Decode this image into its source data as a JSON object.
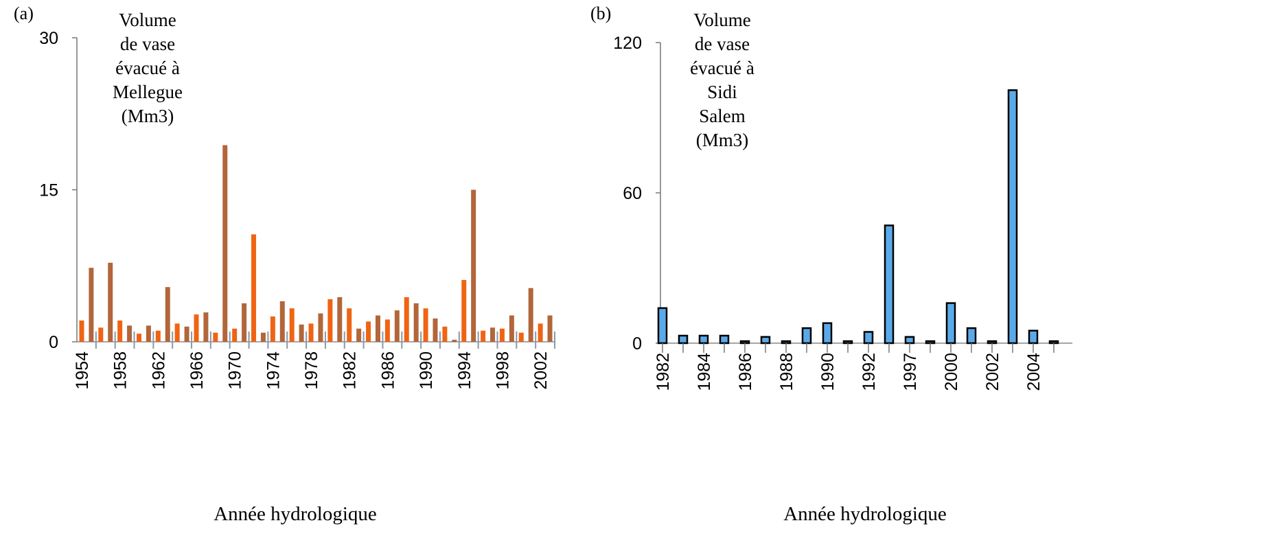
{
  "chart_data": [
    {
      "type": "bar",
      "panel_label": "(a)",
      "title_lines": [
        "Volume",
        "de vase",
        "évacué à",
        "Mellegue",
        "(Mm3)"
      ],
      "xlabel": "Année hydrologique",
      "ylim": [
        0,
        30
      ],
      "yticks": [
        "0",
        "15",
        "30"
      ],
      "ytick_values": [
        0,
        15,
        30
      ],
      "categories": [
        1954,
        1955,
        1956,
        1957,
        1958,
        1959,
        1960,
        1961,
        1962,
        1963,
        1964,
        1965,
        1966,
        1967,
        1968,
        1969,
        1970,
        1971,
        1972,
        1973,
        1974,
        1975,
        1976,
        1977,
        1978,
        1979,
        1980,
        1981,
        1982,
        1983,
        1984,
        1985,
        1986,
        1987,
        1988,
        1989,
        1990,
        1991,
        1992,
        1993,
        1994,
        1995,
        1996,
        1997,
        1998,
        1999,
        2000,
        2001,
        2002,
        2003
      ],
      "xtick_labels": [
        "1954",
        "",
        "",
        "",
        "1958",
        "",
        "",
        "",
        "1962",
        "",
        "",
        "",
        "1966",
        "",
        "",
        "",
        "1970",
        "",
        "",
        "",
        "1974",
        "",
        "",
        "",
        "1978",
        "",
        "",
        "",
        "1982",
        "",
        "",
        "",
        "1986",
        "",
        "",
        "",
        "1990",
        "",
        "",
        "",
        "1994",
        "",
        "",
        "",
        "1998",
        "",
        "",
        "",
        "2002",
        ""
      ],
      "values": [
        2.1,
        7.3,
        1.4,
        7.8,
        2.1,
        1.6,
        0.8,
        1.6,
        1.1,
        5.4,
        1.8,
        1.5,
        2.7,
        2.9,
        0.9,
        19.4,
        1.3,
        3.8,
        10.6,
        0.9,
        2.5,
        4.0,
        3.3,
        1.7,
        1.8,
        2.8,
        4.2,
        4.4,
        3.3,
        1.3,
        2.0,
        2.6,
        2.2,
        3.1,
        4.4,
        3.8,
        3.3,
        2.3,
        1.5,
        0.2,
        6.1,
        15.0,
        1.1,
        1.4,
        1.3,
        2.6,
        0.9,
        5.3,
        1.8,
        2.6
      ],
      "colors": [
        "#ef6414",
        "#b2663a"
      ]
    },
    {
      "type": "bar",
      "panel_label": "(b)",
      "title_lines": [
        "Volume",
        "de vase",
        "évacué à",
        "Sidi",
        "Salem",
        "(Mm3)"
      ],
      "xlabel": "Année hydrologique",
      "ylim": [
        0,
        120
      ],
      "yticks": [
        "0",
        "60",
        "120"
      ],
      "ytick_values": [
        0,
        60,
        120
      ],
      "xtick_labels": [
        "1982",
        "",
        "1984",
        "",
        "1986",
        "",
        "1988",
        "",
        "1990",
        "",
        "1992",
        "",
        "1997",
        "",
        "2000",
        "",
        "2002",
        "",
        "2004",
        ""
      ],
      "values": [
        14,
        3,
        3,
        3,
        0.8,
        2.5,
        0.8,
        6,
        8,
        0.8,
        4.5,
        47,
        2.5,
        0.8,
        16,
        6,
        0.8,
        101,
        5,
        0.8
      ],
      "colors": [
        "#5aaaea",
        "#000000"
      ]
    }
  ]
}
